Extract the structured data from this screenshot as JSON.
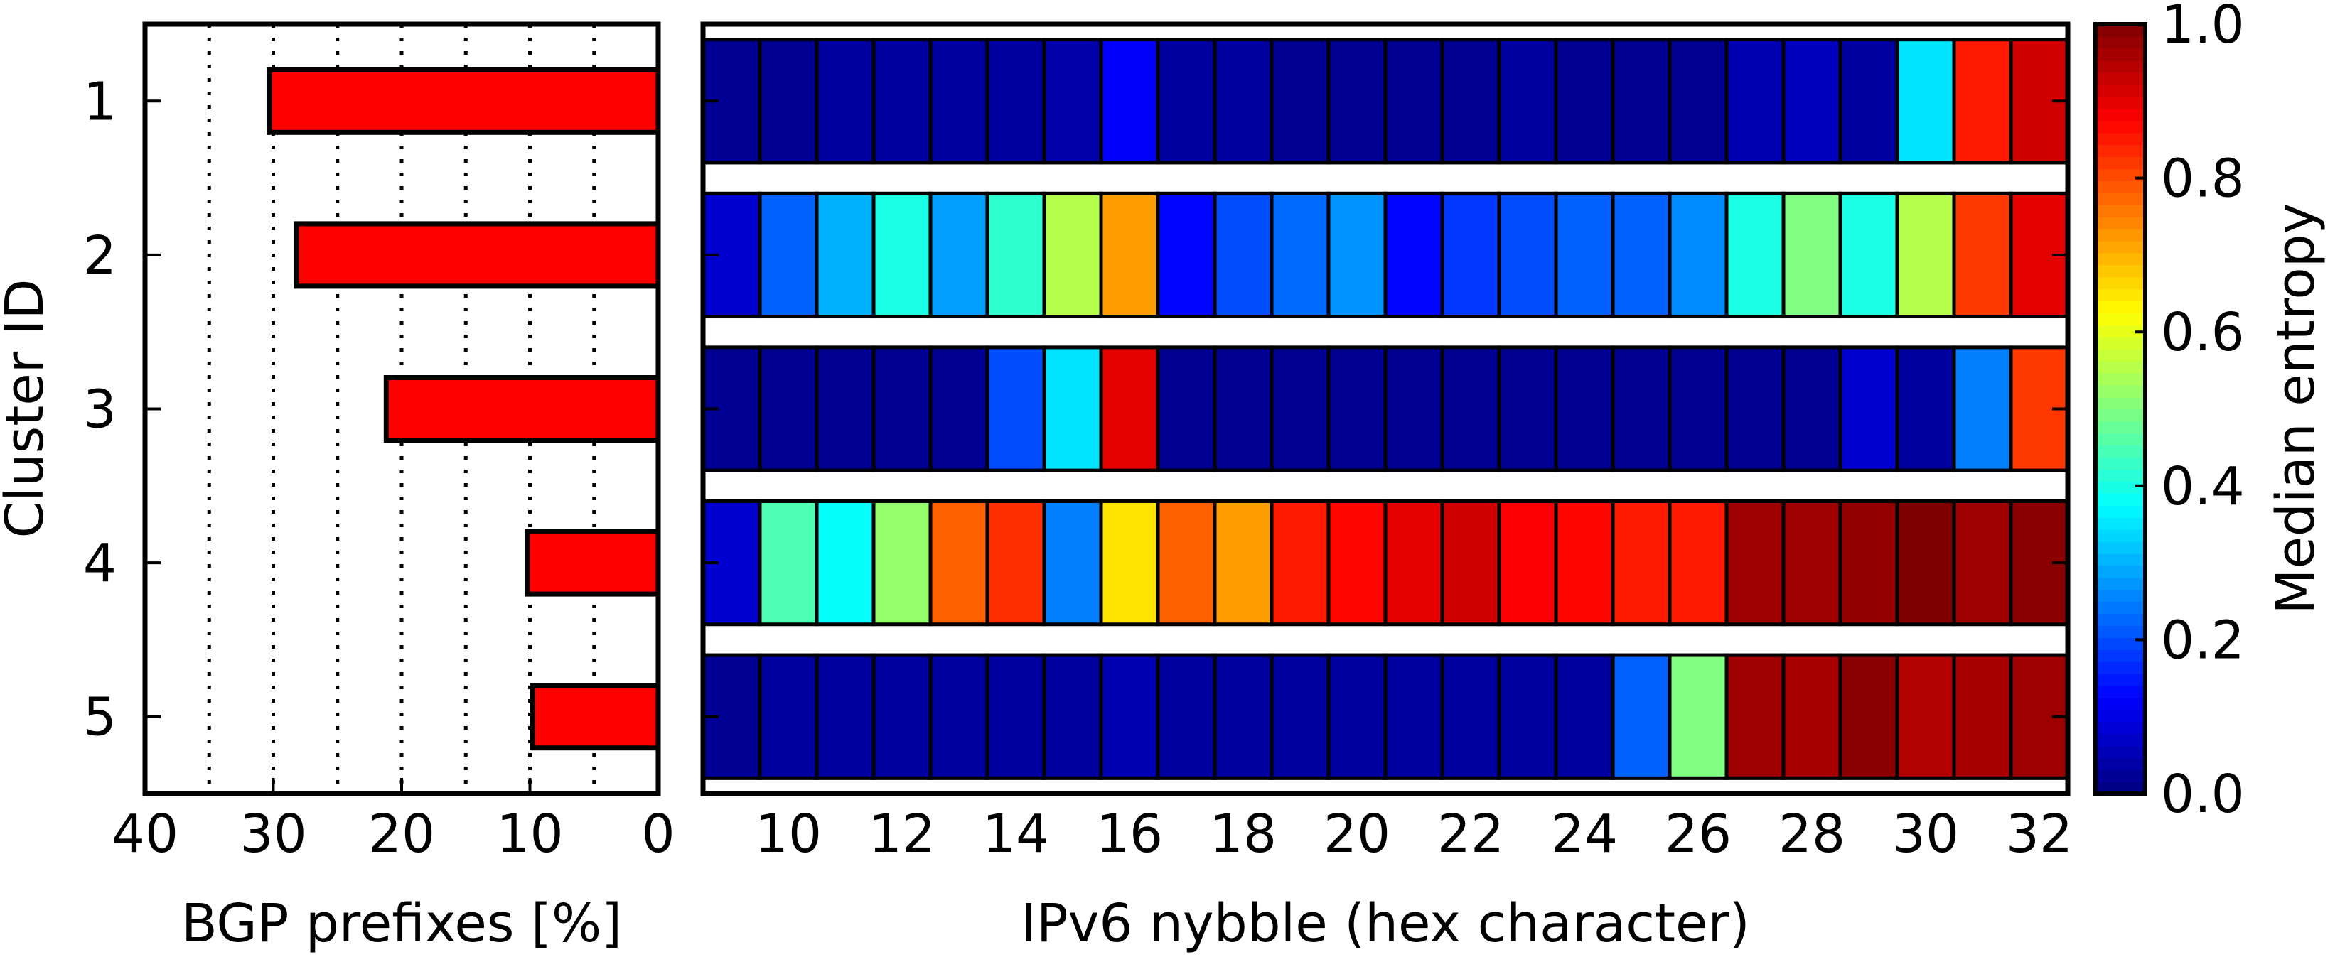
{
  "chart_data": [
    {
      "type": "bar",
      "orientation": "horizontal",
      "categories": [
        "1",
        "2",
        "3",
        "4",
        "5"
      ],
      "values": [
        30.3,
        28.2,
        21.2,
        10.2,
        9.8
      ],
      "xlabel": "BGP prefixes [%]",
      "ylabel": "Cluster ID",
      "xlim": [
        40,
        0
      ],
      "xticks": [
        "40",
        "30",
        "20",
        "10",
        "0"
      ],
      "grid": "vertical dotted every 5",
      "bar_color": "#ff0000"
    },
    {
      "type": "heatmap",
      "x": [
        9,
        10,
        11,
        12,
        13,
        14,
        15,
        16,
        17,
        18,
        19,
        20,
        21,
        22,
        23,
        24,
        25,
        26,
        27,
        28,
        29,
        30,
        31,
        32
      ],
      "rows": [
        "1",
        "2",
        "3",
        "4",
        "5"
      ],
      "values": [
        [
          0.02,
          0.02,
          0.03,
          0.03,
          0.03,
          0.03,
          0.04,
          0.12,
          0.03,
          0.03,
          0.02,
          0.02,
          0.02,
          0.02,
          0.03,
          0.02,
          0.02,
          0.02,
          0.05,
          0.06,
          0.03,
          0.35,
          0.85,
          0.92
        ],
        [
          0.08,
          0.22,
          0.3,
          0.4,
          0.28,
          0.42,
          0.55,
          0.72,
          0.13,
          0.2,
          0.23,
          0.27,
          0.13,
          0.18,
          0.2,
          0.22,
          0.22,
          0.26,
          0.4,
          0.5,
          0.4,
          0.55,
          0.82,
          0.9
        ],
        [
          0.02,
          0.02,
          0.02,
          0.02,
          0.02,
          0.2,
          0.35,
          0.9,
          0.02,
          0.02,
          0.02,
          0.02,
          0.02,
          0.02,
          0.02,
          0.02,
          0.02,
          0.02,
          0.02,
          0.02,
          0.08,
          0.03,
          0.25,
          0.82
        ],
        [
          0.08,
          0.45,
          0.38,
          0.52,
          0.78,
          0.83,
          0.25,
          0.65,
          0.78,
          0.72,
          0.85,
          0.87,
          0.9,
          0.92,
          0.88,
          0.87,
          0.85,
          0.85,
          0.97,
          0.97,
          0.98,
          1.0,
          0.97,
          0.99
        ],
        [
          0.02,
          0.03,
          0.03,
          0.03,
          0.03,
          0.03,
          0.03,
          0.05,
          0.03,
          0.03,
          0.03,
          0.03,
          0.03,
          0.03,
          0.03,
          0.03,
          0.22,
          0.5,
          0.97,
          0.96,
          0.99,
          0.95,
          0.96,
          0.97
        ]
      ],
      "xlabel": "IPv6 nybble (hex character)",
      "xticks": [
        "10",
        "12",
        "14",
        "16",
        "18",
        "20",
        "22",
        "24",
        "26",
        "28",
        "30",
        "32"
      ],
      "colormap": "jet",
      "colorbar": {
        "label": "Median entropy",
        "range": [
          0,
          1
        ],
        "ticks": [
          "0.0",
          "0.2",
          "0.4",
          "0.6",
          "0.8",
          "1.0"
        ]
      }
    }
  ]
}
